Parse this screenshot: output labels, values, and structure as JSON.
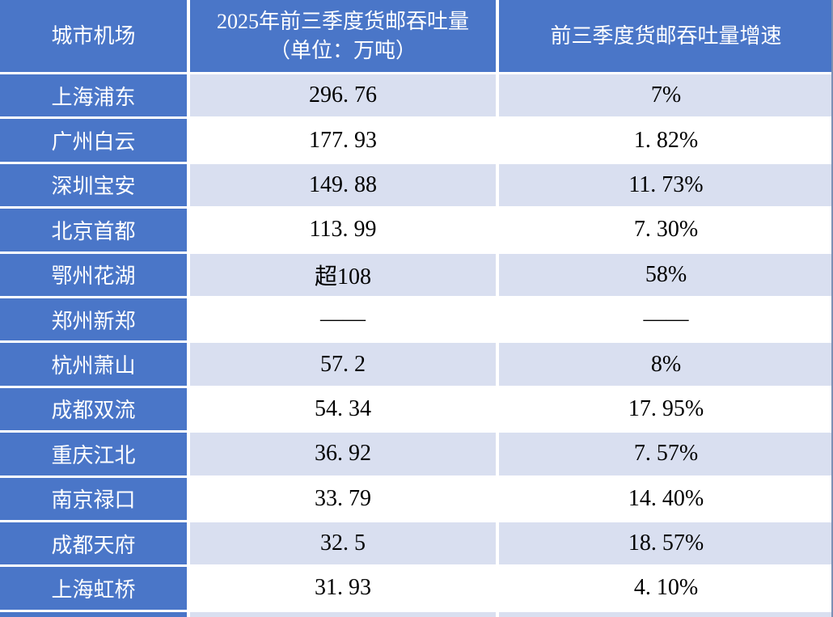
{
  "colors": {
    "header_blue": "#4a76c8",
    "row_shade_lavender": "#d9dff0",
    "row_white": "#ffffff",
    "grid_line_white": "#ffffff",
    "text_on_blue": "#ffffff",
    "text_on_light": "#000000"
  },
  "header": {
    "col_airport": "城市机场",
    "col_volume_line1": "2025年前三季度货邮吞吐量",
    "col_volume_line2": "（单位：万吨）",
    "col_growth": "前三季度货邮吞吐量增速"
  },
  "rows": [
    {
      "airport": "上海浦东",
      "volume": "296. 76",
      "growth": "7%"
    },
    {
      "airport": "广州白云",
      "volume": "177. 93",
      "growth": "1. 82%"
    },
    {
      "airport": "深圳宝安",
      "volume": "149. 88",
      "growth": "11. 73%"
    },
    {
      "airport": "北京首都",
      "volume": "113. 99",
      "growth": "7. 30%"
    },
    {
      "airport": "鄂州花湖",
      "volume": "超108",
      "growth": "58%"
    },
    {
      "airport": "郑州新郑",
      "volume": "——",
      "growth": "——"
    },
    {
      "airport": "杭州萧山",
      "volume": "57. 2",
      "growth": "8%"
    },
    {
      "airport": "成都双流",
      "volume": "54. 34",
      "growth": "17. 95%"
    },
    {
      "airport": "重庆江北",
      "volume": "36. 92",
      "growth": "7. 57%"
    },
    {
      "airport": "南京禄口",
      "volume": "33. 79",
      "growth": "14. 40%"
    },
    {
      "airport": "成都天府",
      "volume": "32. 5",
      "growth": "18. 57%"
    },
    {
      "airport": "上海虹桥",
      "volume": "31. 93",
      "growth": "4. 10%"
    }
  ],
  "chart_data": {
    "type": "table",
    "title": "",
    "columns": [
      "城市机场",
      "2025年前三季度货邮吞吐量（单位：万吨）",
      "前三季度货邮吞吐量增速"
    ],
    "rows": [
      [
        "上海浦东",
        296.76,
        "7%"
      ],
      [
        "广州白云",
        177.93,
        "1.82%"
      ],
      [
        "深圳宝安",
        149.88,
        "11.73%"
      ],
      [
        "北京首都",
        113.99,
        "7.30%"
      ],
      [
        "鄂州花湖",
        "超108",
        "58%"
      ],
      [
        "郑州新郑",
        "——",
        "——"
      ],
      [
        "杭州萧山",
        57.2,
        "8%"
      ],
      [
        "成都双流",
        54.34,
        "17.95%"
      ],
      [
        "重庆江北",
        36.92,
        "7.57%"
      ],
      [
        "南京禄口",
        33.79,
        "14.40%"
      ],
      [
        "成都天府",
        32.5,
        "18.57%"
      ],
      [
        "上海虹桥",
        31.93,
        "4.10%"
      ]
    ],
    "layout_hints": {
      "header_fill": "#4a76c8",
      "first_column_fill": "#4a76c8",
      "body_row_alternating_fills": [
        "#d9dff0",
        "#ffffff"
      ],
      "grid": "white 3-4px separators",
      "text_align": "center"
    }
  }
}
